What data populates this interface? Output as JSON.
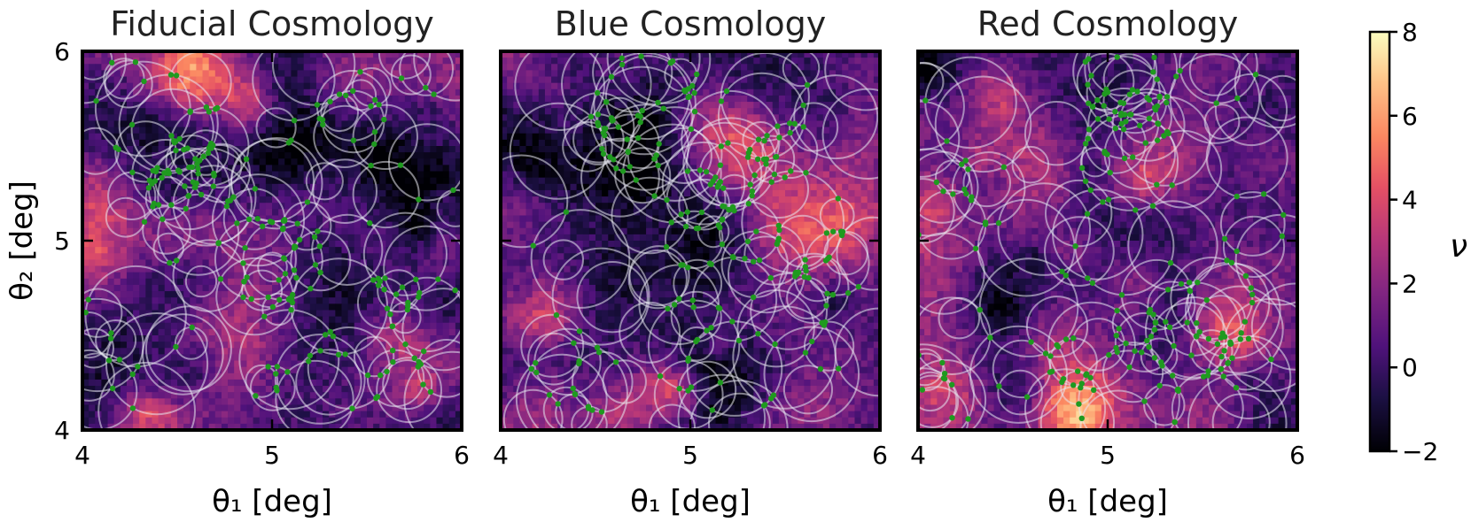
{
  "chart_data": {
    "type": "heatmap",
    "panels": [
      {
        "title": "Fiducial Cosmology",
        "xlabel": "θ₁ [deg]",
        "ylabel": "θ₂ [deg]",
        "xlim": [
          4,
          6
        ],
        "ylim": [
          4,
          6
        ],
        "xticks": [
          "4",
          "5",
          "6"
        ],
        "yticks": [
          "4",
          "5",
          "6"
        ]
      },
      {
        "title": "Blue Cosmology",
        "xlabel": "θ₁ [deg]",
        "ylabel": "",
        "xlim": [
          4,
          6
        ],
        "ylim": [
          4,
          6
        ],
        "xticks": [
          "4",
          "5",
          "6"
        ],
        "yticks": []
      },
      {
        "title": "Red Cosmology",
        "xlabel": "θ₁ [deg]",
        "ylabel": "",
        "xlim": [
          4,
          6
        ],
        "ylim": [
          4,
          6
        ],
        "xticks": [
          "4",
          "5",
          "6"
        ],
        "yticks": []
      }
    ],
    "colorbar": {
      "label": "ν",
      "range": [
        -2,
        8
      ],
      "ticks": [
        "−2",
        "0",
        "2",
        "4",
        "6",
        "8"
      ],
      "colormap": "magma"
    },
    "overlays": {
      "circles": "semi-transparent white circles",
      "points": "green markers at circle intersections"
    },
    "colors": {
      "circle": "#e8e8f0",
      "point": "#1f9a1f",
      "frame": "#000000"
    }
  }
}
